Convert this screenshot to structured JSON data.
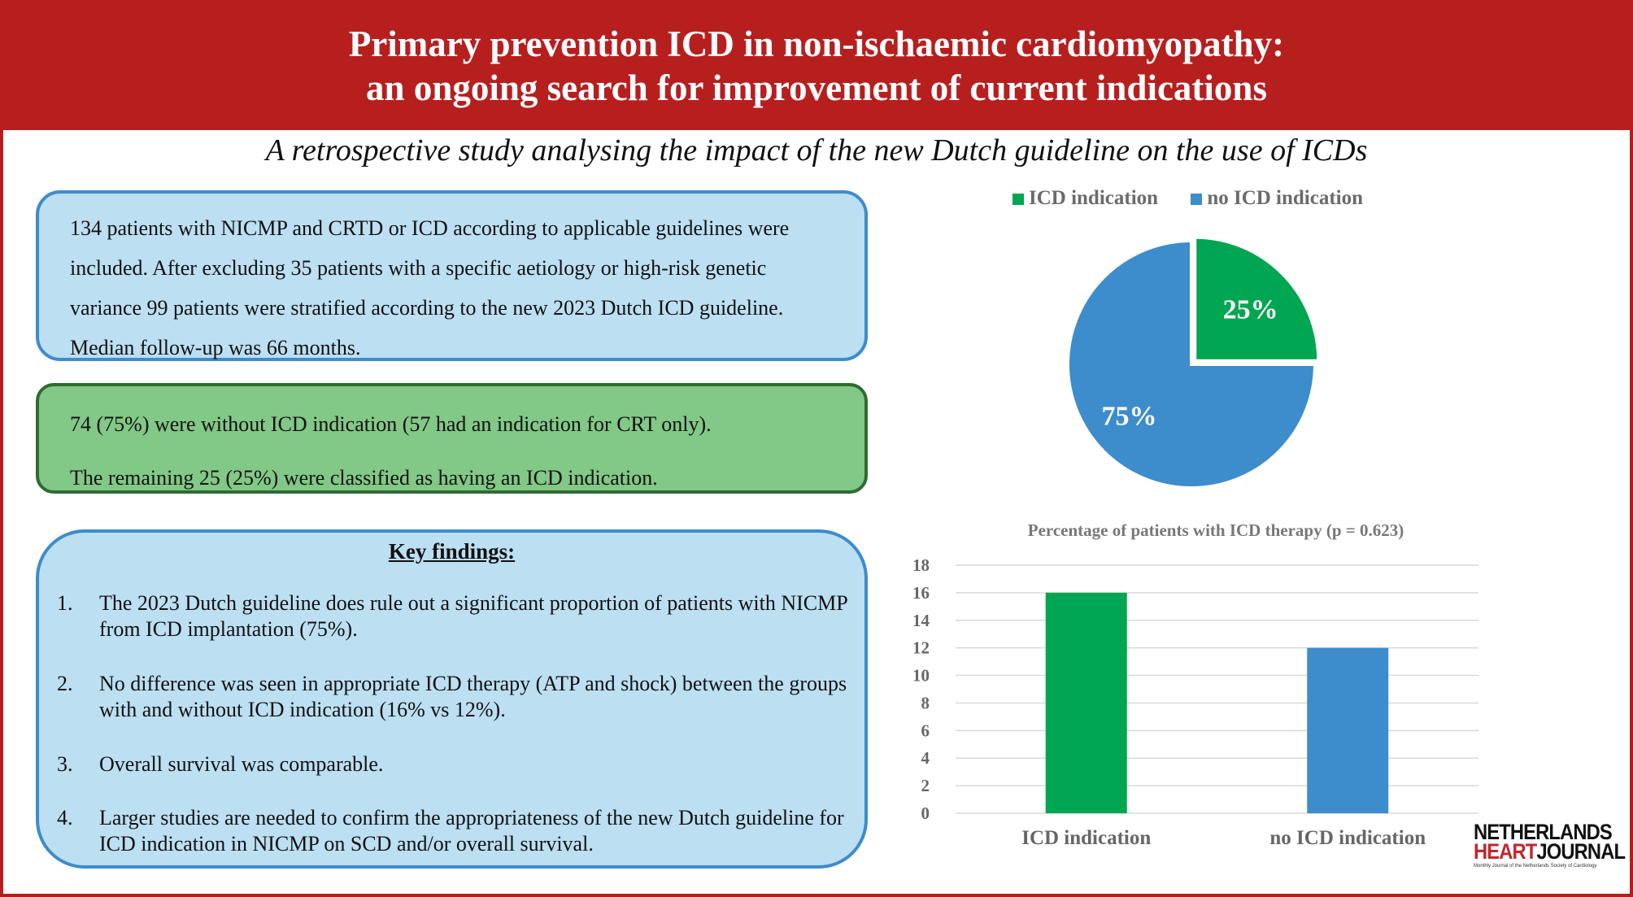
{
  "header": {
    "title_line1": "Primary prevention ICD in non-ischaemic cardiomyopathy:",
    "title_line2": "an ongoing search for improvement of current indications"
  },
  "subtitle": "A retrospective study analysing the impact of the new Dutch guideline on the use of ICDs",
  "box1": {
    "text": "134 patients with NICMP and CRTD or ICD according to applicable guidelines were included. After excluding 35 patients with a specific aetiology or high-risk genetic variance 99 patients were stratified according to the new 2023 Dutch ICD guideline. Median follow-up was 66 months."
  },
  "box2": {
    "line1": "74 (75%) were without ICD indication (57 had an indication for CRT only).",
    "line2": "The remaining 25 (25%) were classified as having an ICD indication."
  },
  "key_findings": {
    "title": "Key findings:",
    "items": [
      {
        "num": "1.",
        "text": "The 2023 Dutch guideline does rule out a significant proportion of patients with NICMP from ICD implantation (75%)."
      },
      {
        "num": "2.",
        "text": "No difference was seen in appropriate ICD therapy (ATP and shock) between the groups with and without ICD indication (16% vs 12%)."
      },
      {
        "num": "3.",
        "text": "Overall survival was comparable."
      },
      {
        "num": "4.",
        "text": "Larger studies are needed to confirm the appropriateness of the new Dutch guideline for ICD indication in NICMP on SCD and/or overall survival."
      }
    ]
  },
  "colors": {
    "green": "#00a651",
    "blue": "#3d8ccc",
    "header_red": "#b71f1f"
  },
  "chart_data": [
    {
      "type": "pie",
      "categories": [
        "ICD indication",
        "no ICD indication"
      ],
      "values": [
        25,
        75
      ],
      "labels": [
        "25%",
        "75%"
      ],
      "legend": "top",
      "colors": [
        "#00a651",
        "#3d8ccc"
      ]
    },
    {
      "type": "bar",
      "title": "Percentage of patients with ICD therapy (p = 0.623)",
      "categories": [
        "ICD indication",
        "no ICD indication"
      ],
      "values": [
        16,
        12
      ],
      "ylim": [
        0,
        18
      ],
      "yticks": [
        "0",
        "2",
        "4",
        "6",
        "8",
        "10",
        "12",
        "14",
        "16",
        "18"
      ],
      "grid": true,
      "colors": [
        "#00a651",
        "#3d8ccc"
      ]
    }
  ],
  "logo": {
    "line1": "NETHERLANDS",
    "line2_a": "HEART",
    "line2_b": "JOURNAL",
    "tagline": "Monthly Journal of the Netherlands Society of Cardiology"
  }
}
